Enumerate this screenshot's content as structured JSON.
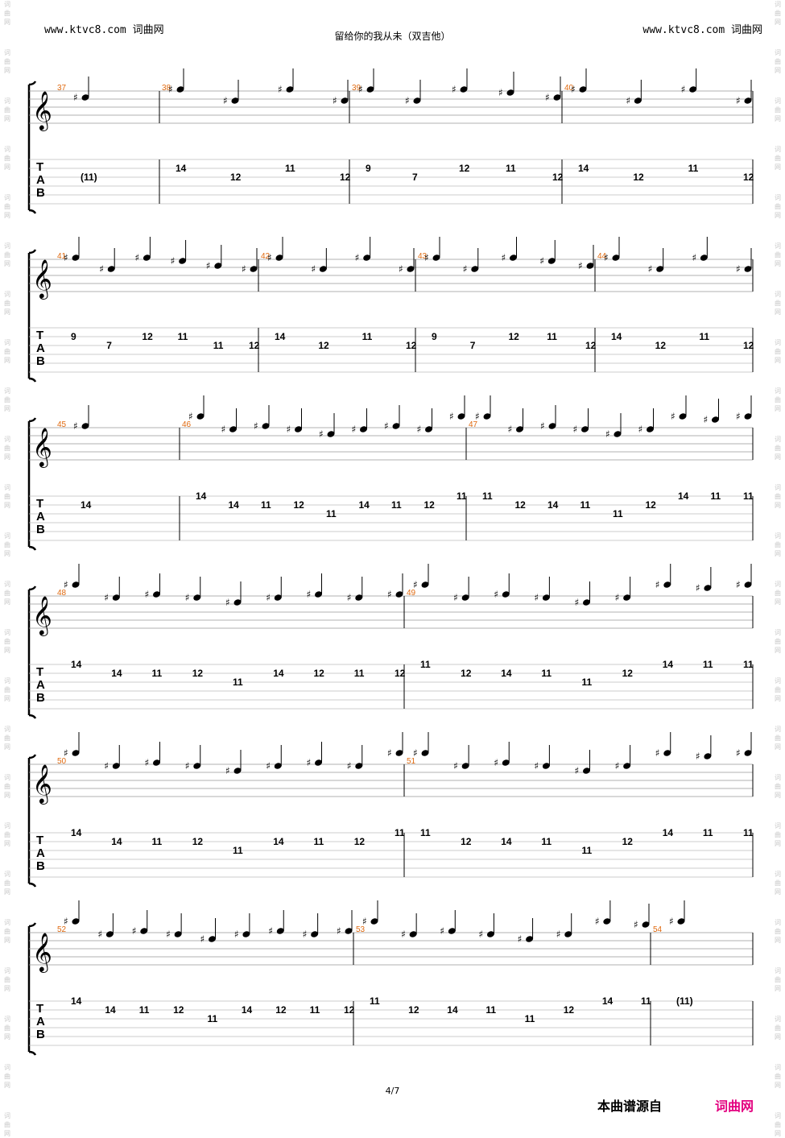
{
  "header": {
    "left_site": "www.ktvc8.com 词曲网",
    "title": "留给你的我从未（双吉他）",
    "right_site": "www.ktvc8.com 词曲网"
  },
  "watermark": "词曲网",
  "page_number": "4/7",
  "footer": {
    "source_label": "本曲谱源自",
    "source_site": "词曲网"
  },
  "tab_clef": "TAB",
  "systems": [
    {
      "bars": [
        {
          "num": "37",
          "frets": [
            {
              "f": "(11)",
              "s": 3
            }
          ]
        },
        {
          "num": "38",
          "frets": [
            {
              "f": "14",
              "s": 2
            },
            {
              "f": "12",
              "s": 3
            },
            {
              "f": "11",
              "s": 2
            },
            {
              "f": "12",
              "s": 3
            }
          ]
        },
        {
          "num": "39",
          "frets": [
            {
              "f": "9",
              "s": 2
            },
            {
              "f": "7",
              "s": 3
            },
            {
              "f": "12",
              "s": 2
            },
            {
              "f": "11",
              "s": 2
            },
            {
              "f": "12",
              "s": 3
            }
          ]
        },
        {
          "num": "40",
          "frets": [
            {
              "f": "14",
              "s": 2
            },
            {
              "f": "12",
              "s": 3
            },
            {
              "f": "11",
              "s": 2
            },
            {
              "f": "12",
              "s": 3
            }
          ]
        }
      ]
    },
    {
      "bars": [
        {
          "num": "41",
          "frets": [
            {
              "f": "9",
              "s": 2
            },
            {
              "f": "7",
              "s": 3
            },
            {
              "f": "12",
              "s": 2
            },
            {
              "f": "11",
              "s": 2
            },
            {
              "f": "11",
              "s": 3
            },
            {
              "f": "12",
              "s": 3
            }
          ]
        },
        {
          "num": "42",
          "frets": [
            {
              "f": "14",
              "s": 2
            },
            {
              "f": "12",
              "s": 3
            },
            {
              "f": "11",
              "s": 2
            },
            {
              "f": "12",
              "s": 3
            }
          ]
        },
        {
          "num": "43",
          "frets": [
            {
              "f": "9",
              "s": 2
            },
            {
              "f": "7",
              "s": 3
            },
            {
              "f": "12",
              "s": 2
            },
            {
              "f": "11",
              "s": 2
            },
            {
              "f": "12",
              "s": 3
            }
          ]
        },
        {
          "num": "44",
          "frets": [
            {
              "f": "14",
              "s": 2
            },
            {
              "f": "12",
              "s": 3
            },
            {
              "f": "11",
              "s": 2
            },
            {
              "f": "12",
              "s": 3
            }
          ]
        }
      ]
    },
    {
      "bars": [
        {
          "num": "45",
          "frets": [
            {
              "f": "14",
              "s": 2
            }
          ]
        },
        {
          "num": "46",
          "frets": [
            {
              "f": "14",
              "s": 1
            },
            {
              "f": "14",
              "s": 2
            },
            {
              "f": "11",
              "s": 2
            },
            {
              "f": "12",
              "s": 2
            },
            {
              "f": "11",
              "s": 3
            },
            {
              "f": "14",
              "s": 2
            },
            {
              "f": "11",
              "s": 2
            },
            {
              "f": "12",
              "s": 2
            },
            {
              "f": "11",
              "s": 1
            }
          ]
        },
        {
          "num": "47",
          "frets": [
            {
              "f": "11",
              "s": 1
            },
            {
              "f": "12",
              "s": 2
            },
            {
              "f": "14",
              "s": 2
            },
            {
              "f": "11",
              "s": 2
            },
            {
              "f": "11",
              "s": 3
            },
            {
              "f": "12",
              "s": 2
            },
            {
              "f": "14",
              "s": 1
            },
            {
              "f": "11",
              "s": 1
            },
            {
              "f": "11",
              "s": 1
            }
          ]
        }
      ]
    },
    {
      "bars": [
        {
          "num": "48",
          "frets": [
            {
              "f": "14",
              "s": 1
            },
            {
              "f": "14",
              "s": 2
            },
            {
              "f": "11",
              "s": 2
            },
            {
              "f": "12",
              "s": 2
            },
            {
              "f": "11",
              "s": 3
            },
            {
              "f": "14",
              "s": 2
            },
            {
              "f": "12",
              "s": 2
            },
            {
              "f": "11",
              "s": 2
            },
            {
              "f": "12",
              "s": 2
            }
          ]
        },
        {
          "num": "49",
          "frets": [
            {
              "f": "11",
              "s": 1
            },
            {
              "f": "12",
              "s": 2
            },
            {
              "f": "14",
              "s": 2
            },
            {
              "f": "11",
              "s": 2
            },
            {
              "f": "11",
              "s": 3
            },
            {
              "f": "12",
              "s": 2
            },
            {
              "f": "14",
              "s": 1
            },
            {
              "f": "11",
              "s": 1
            },
            {
              "f": "11",
              "s": 1
            }
          ]
        }
      ]
    },
    {
      "bars": [
        {
          "num": "50",
          "frets": [
            {
              "f": "14",
              "s": 1
            },
            {
              "f": "14",
              "s": 2
            },
            {
              "f": "11",
              "s": 2
            },
            {
              "f": "12",
              "s": 2
            },
            {
              "f": "11",
              "s": 3
            },
            {
              "f": "14",
              "s": 2
            },
            {
              "f": "11",
              "s": 2
            },
            {
              "f": "12",
              "s": 2
            },
            {
              "f": "11",
              "s": 1
            }
          ]
        },
        {
          "num": "51",
          "frets": [
            {
              "f": "11",
              "s": 1
            },
            {
              "f": "12",
              "s": 2
            },
            {
              "f": "14",
              "s": 2
            },
            {
              "f": "11",
              "s": 2
            },
            {
              "f": "11",
              "s": 3
            },
            {
              "f": "12",
              "s": 2
            },
            {
              "f": "14",
              "s": 1
            },
            {
              "f": "11",
              "s": 1
            },
            {
              "f": "11",
              "s": 1
            }
          ]
        }
      ]
    },
    {
      "bars": [
        {
          "num": "52",
          "frets": [
            {
              "f": "14",
              "s": 1
            },
            {
              "f": "14",
              "s": 2
            },
            {
              "f": "11",
              "s": 2
            },
            {
              "f": "12",
              "s": 2
            },
            {
              "f": "11",
              "s": 3
            },
            {
              "f": "14",
              "s": 2
            },
            {
              "f": "12",
              "s": 2
            },
            {
              "f": "11",
              "s": 2
            },
            {
              "f": "12",
              "s": 2
            }
          ]
        },
        {
          "num": "53",
          "frets": [
            {
              "f": "11",
              "s": 1
            },
            {
              "f": "12",
              "s": 2
            },
            {
              "f": "14",
              "s": 2
            },
            {
              "f": "11",
              "s": 2
            },
            {
              "f": "11",
              "s": 3
            },
            {
              "f": "12",
              "s": 2
            },
            {
              "f": "14",
              "s": 1
            },
            {
              "f": "11",
              "s": 1
            }
          ]
        },
        {
          "num": "54",
          "frets": [
            {
              "f": "(11)",
              "s": 1
            }
          ]
        }
      ]
    }
  ]
}
